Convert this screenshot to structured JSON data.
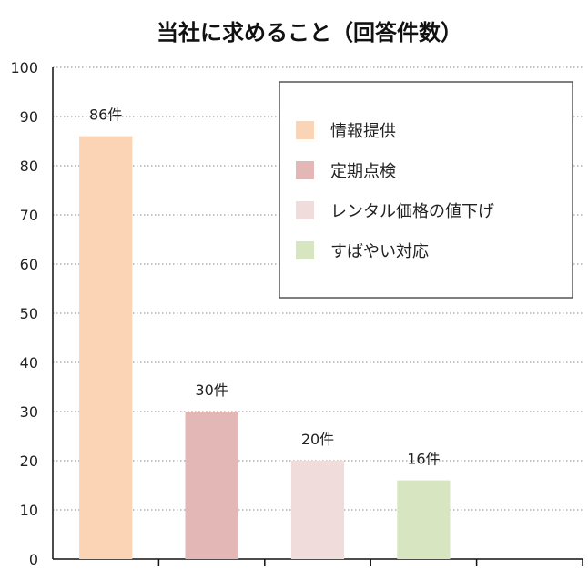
{
  "chart_data": {
    "type": "bar",
    "title": "当社に求めること（回答件数）",
    "xlabel": "",
    "ylabel": "",
    "ylim": [
      0,
      100
    ],
    "yticks": [
      0,
      10,
      20,
      30,
      40,
      50,
      60,
      70,
      80,
      90,
      100
    ],
    "grid": true,
    "legend_position": "top-right",
    "categories": [
      "情報提供",
      "定期点検",
      "レンタル価格の値下げ",
      "すばやい対応"
    ],
    "values": [
      86,
      30,
      20,
      16
    ],
    "data_labels": [
      "86件",
      "30件",
      "20件",
      "16件"
    ],
    "colors": [
      "#FAD4B4",
      "#E3B7B5",
      "#F0DCDA",
      "#D7E5C0"
    ]
  }
}
